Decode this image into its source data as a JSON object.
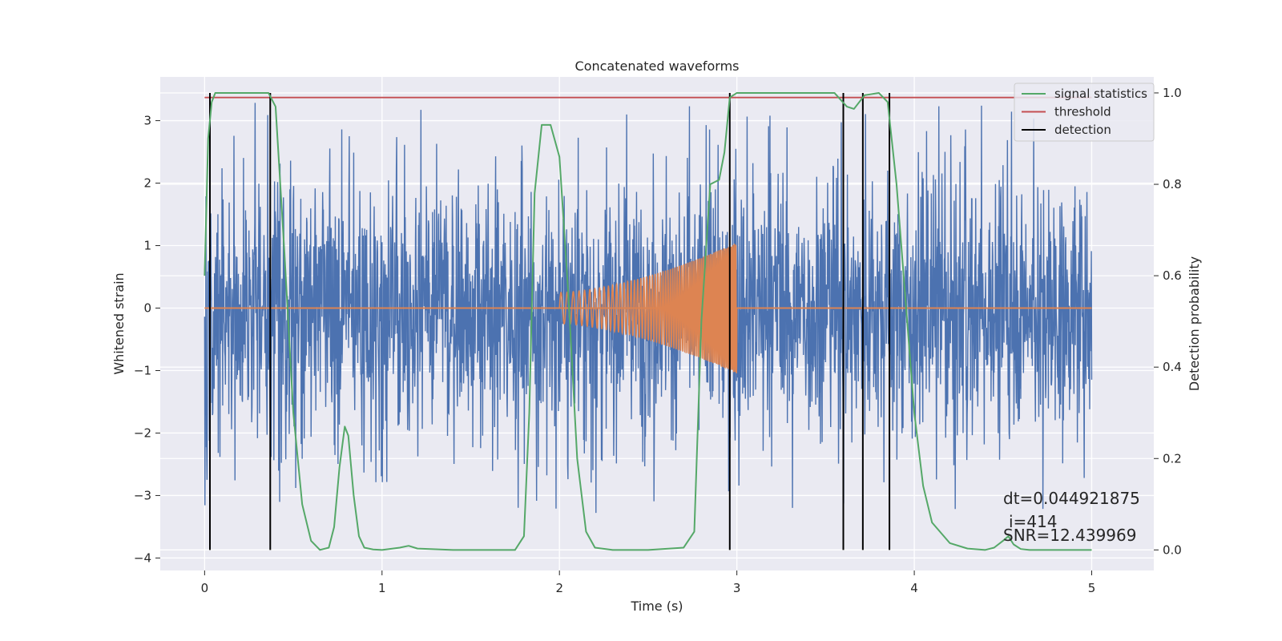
{
  "chart_data": {
    "type": "line",
    "title": "Concatenated waveforms",
    "xlabel": "Time (s)",
    "ylabel": "Whitened strain",
    "y2label": "Detection probability",
    "xlim": [
      -0.25,
      5.35
    ],
    "ylim": [
      -4.2,
      3.7
    ],
    "y2lim": [
      -0.045,
      1.035
    ],
    "xticks": [
      0,
      1,
      2,
      3,
      4,
      5
    ],
    "yticks": [
      -4,
      -3,
      -2,
      -1,
      0,
      1,
      2,
      3
    ],
    "y2ticks": [
      0.0,
      0.2,
      0.4,
      0.6,
      0.8,
      1.0
    ],
    "xtick_labels": [
      "0",
      "1",
      "2",
      "3",
      "4",
      "5"
    ],
    "ytick_labels": [
      "−4",
      "−3",
      "−2",
      "−1",
      "0",
      "1",
      "2",
      "3"
    ],
    "y2tick_labels": [
      "0.0",
      "0.2",
      "0.4",
      "0.6",
      "0.8",
      "1.0"
    ],
    "grid": true,
    "legend_position": "top-right",
    "colors": {
      "strain": "#4c72b0",
      "template": "#dd8452",
      "signal_statistics": "#55a868",
      "threshold": "#c44e52",
      "detection": "#000000"
    },
    "series": [
      {
        "name": "",
        "axis": "left",
        "description_x": [
          0,
          5
        ],
        "noise_range": [
          -3.8,
          3.4
        ]
      },
      {
        "name": "",
        "axis": "left",
        "chirp_x": [
          2.0,
          3.0
        ],
        "amplitude_start": 0.25,
        "amplitude_end": 1.05
      },
      {
        "name": "signal statistics",
        "axis": "right",
        "x": [
          0,
          0.02,
          0.04,
          0.06,
          0.1,
          0.2,
          0.3,
          0.36,
          0.4,
          0.45,
          0.5,
          0.55,
          0.6,
          0.65,
          0.7,
          0.73,
          0.76,
          0.79,
          0.81,
          0.84,
          0.87,
          0.9,
          0.95,
          1.0,
          1.1,
          1.15,
          1.2,
          1.4,
          1.6,
          1.75,
          1.8,
          1.83,
          1.86,
          1.9,
          1.95,
          2.0,
          2.05,
          2.1,
          2.15,
          2.2,
          2.3,
          2.5,
          2.7,
          2.76,
          2.8,
          2.85,
          2.9,
          2.93,
          2.96,
          3.0,
          3.3,
          3.55,
          3.62,
          3.66,
          3.72,
          3.8,
          3.85,
          3.9,
          3.95,
          4.0,
          4.05,
          4.1,
          4.2,
          4.3,
          4.4,
          4.45,
          4.5,
          4.53,
          4.56,
          4.6,
          4.65,
          5.0
        ],
        "y": [
          0.6,
          0.9,
          0.98,
          1.0,
          1.0,
          1.0,
          1.0,
          1.0,
          0.97,
          0.65,
          0.3,
          0.1,
          0.02,
          0.0,
          0.005,
          0.05,
          0.18,
          0.27,
          0.25,
          0.12,
          0.03,
          0.005,
          0.001,
          0.0,
          0.005,
          0.009,
          0.003,
          0.0,
          0.0,
          0.0,
          0.03,
          0.3,
          0.78,
          0.93,
          0.93,
          0.86,
          0.56,
          0.2,
          0.04,
          0.005,
          0.0,
          0.0,
          0.005,
          0.04,
          0.5,
          0.8,
          0.81,
          0.87,
          0.99,
          1.0,
          1.0,
          1.0,
          0.97,
          0.965,
          0.995,
          1.0,
          0.98,
          0.8,
          0.55,
          0.3,
          0.14,
          0.06,
          0.015,
          0.003,
          0.0,
          0.005,
          0.02,
          0.03,
          0.012,
          0.002,
          0.0,
          0.0
        ]
      },
      {
        "name": "threshold",
        "axis": "right",
        "x": [
          0,
          5
        ],
        "y": [
          0.99,
          0.99
        ]
      },
      {
        "name": "detection",
        "axis": "right",
        "x": [
          0.03,
          0.37,
          2.96,
          3.6,
          3.71,
          3.86
        ]
      }
    ],
    "annotations": [
      "dt=0.044921875",
      "i=414",
      "SNR=12.439969"
    ]
  }
}
